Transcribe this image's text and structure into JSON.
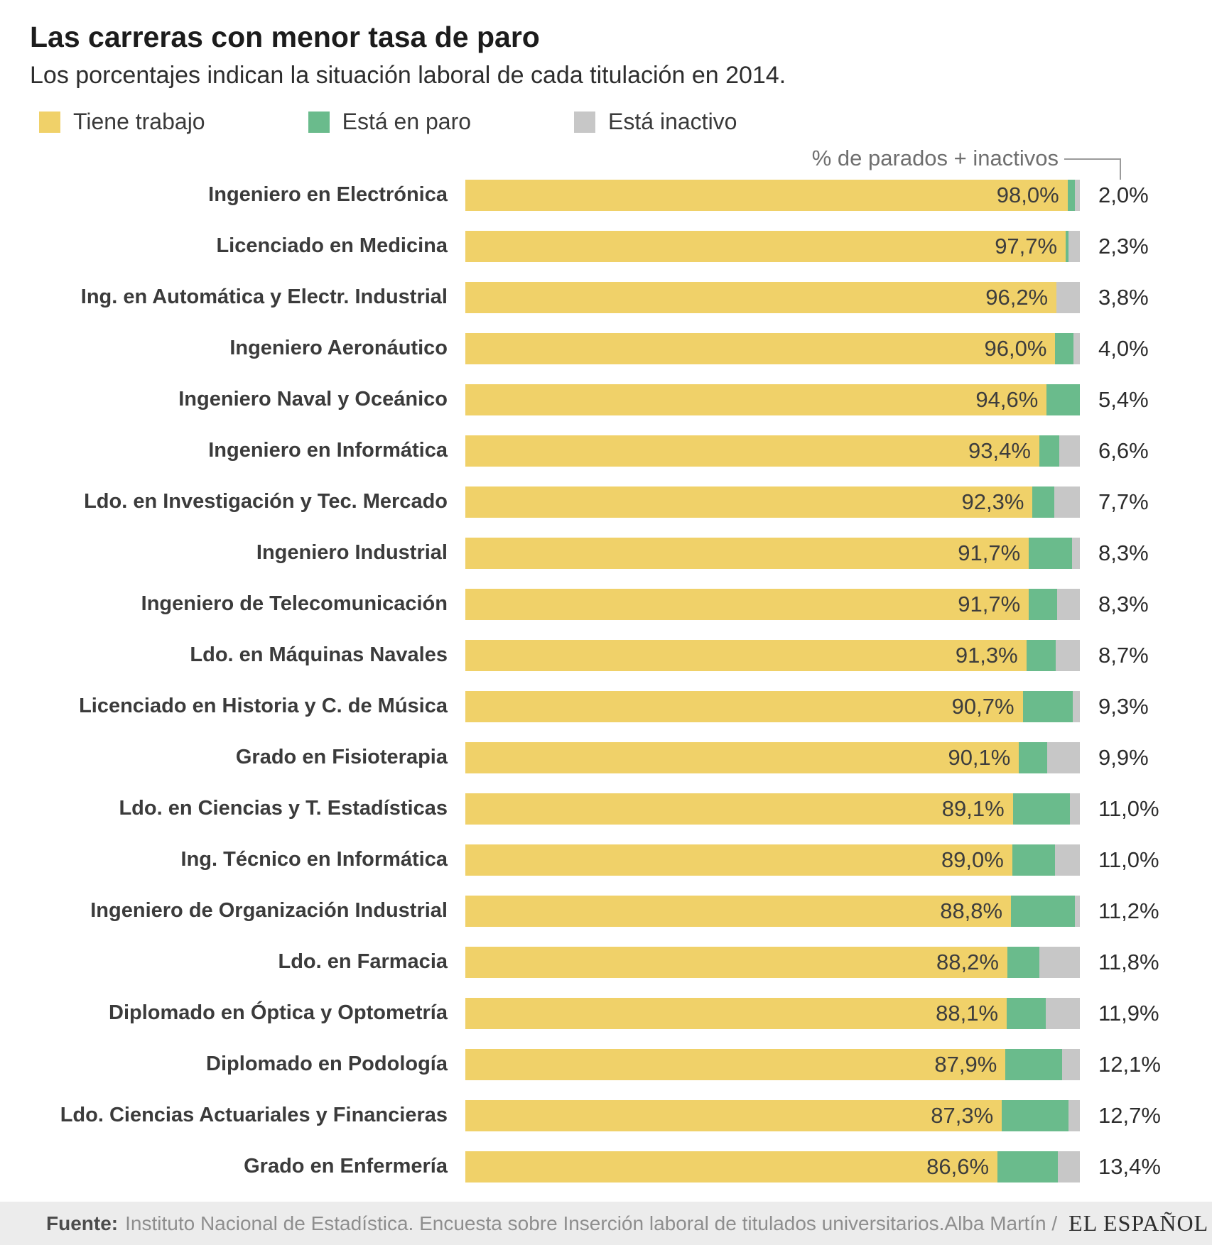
{
  "title": "Las carreras con menor tasa de paro",
  "subtitle": "Los porcentajes indican la situación laboral de cada titulación en 2014.",
  "annotation": "% de parados + inactivos",
  "legend": [
    {
      "label": "Tiene trabajo",
      "color": "#F0D169"
    },
    {
      "label": "Está en paro",
      "color": "#6ABB8C"
    },
    {
      "label": "Está inactivo",
      "color": "#C7C7C7"
    }
  ],
  "footer": {
    "source_label": "Fuente:",
    "source_text": "Instituto Nacional de Estadística. Encuesta sobre Inserción laboral de titulados universitarios.",
    "credit": "Alba Martín /",
    "brand": "EL ESPAÑOL"
  },
  "chart_data": {
    "type": "bar",
    "orientation": "horizontal",
    "stacked": true,
    "unit": "%",
    "xlim": [
      0,
      100
    ],
    "series_names": [
      "Tiene trabajo",
      "Está en paro",
      "Está inactivo"
    ],
    "categories": [
      "Ingeniero en Electrónica",
      "Licenciado en Medicina",
      "Ing. en Automática y Electr. Industrial",
      "Ingeniero Aeronáutico",
      "Ingeniero Naval y Oceánico",
      "Ingeniero en Informática",
      "Ldo. en Investigación y Tec. Mercado",
      "Ingeniero Industrial",
      "Ingeniero de Telecomunicación",
      "Ldo. en Máquinas Navales",
      "Licenciado en Historia y C. de Música",
      "Grado en Fisioterapia",
      "Ldo. en Ciencias y T. Estadísticas",
      "Ing. Técnico en Informática",
      "Ingeniero de Organización Industrial",
      "Ldo. en Farmacia",
      "Diplomado en Óptica y Optometría",
      "Diplomado en Podología",
      "Ldo. Ciencias Actuariales y Financieras",
      "Grado en Enfermería"
    ],
    "rows": [
      {
        "label": "Ingeniero en Electrónica",
        "trabajo": 98.0,
        "paro": 1.2,
        "inactivo": 0.8,
        "trabajo_label": "98,0%",
        "total_label": "2,0%"
      },
      {
        "label": "Licenciado en Medicina",
        "trabajo": 97.7,
        "paro": 0.5,
        "inactivo": 1.8,
        "trabajo_label": "97,7%",
        "total_label": "2,3%"
      },
      {
        "label": "Ing. en Automática y Electr. Industrial",
        "trabajo": 96.2,
        "paro": 0.0,
        "inactivo": 3.8,
        "trabajo_label": "96,2%",
        "total_label": "3,8%"
      },
      {
        "label": "Ingeniero Aeronáutico",
        "trabajo": 96.0,
        "paro": 3.0,
        "inactivo": 1.0,
        "trabajo_label": "96,0%",
        "total_label": "4,0%"
      },
      {
        "label": "Ingeniero Naval y Oceánico",
        "trabajo": 94.6,
        "paro": 5.4,
        "inactivo": 0.0,
        "trabajo_label": "94,6%",
        "total_label": "5,4%"
      },
      {
        "label": "Ingeniero en Informática",
        "trabajo": 93.4,
        "paro": 3.2,
        "inactivo": 3.4,
        "trabajo_label": "93,4%",
        "total_label": "6,6%"
      },
      {
        "label": "Ldo. en Investigación y Tec. Mercado",
        "trabajo": 92.3,
        "paro": 3.5,
        "inactivo": 4.2,
        "trabajo_label": "92,3%",
        "total_label": "7,7%"
      },
      {
        "label": "Ingeniero Industrial",
        "trabajo": 91.7,
        "paro": 7.0,
        "inactivo": 1.3,
        "trabajo_label": "91,7%",
        "total_label": "8,3%"
      },
      {
        "label": "Ingeniero de Telecomunicación",
        "trabajo": 91.7,
        "paro": 4.6,
        "inactivo": 3.7,
        "trabajo_label": "91,7%",
        "total_label": "8,3%"
      },
      {
        "label": "Ldo. en Máquinas Navales",
        "trabajo": 91.3,
        "paro": 4.8,
        "inactivo": 3.9,
        "trabajo_label": "91,3%",
        "total_label": "8,7%"
      },
      {
        "label": "Licenciado en Historia y C. de Música",
        "trabajo": 90.7,
        "paro": 8.1,
        "inactivo": 1.2,
        "trabajo_label": "90,7%",
        "total_label": "9,3%"
      },
      {
        "label": "Grado en Fisioterapia",
        "trabajo": 90.1,
        "paro": 4.6,
        "inactivo": 5.3,
        "trabajo_label": "90,1%",
        "total_label": "9,9%"
      },
      {
        "label": "Ldo. en Ciencias y T. Estadísticas",
        "trabajo": 89.1,
        "paro": 9.3,
        "inactivo": 1.6,
        "trabajo_label": "89,1%",
        "total_label": "11,0%"
      },
      {
        "label": "Ing. Técnico en Informática",
        "trabajo": 89.0,
        "paro": 7.0,
        "inactivo": 4.0,
        "trabajo_label": "89,0%",
        "total_label": "11,0%"
      },
      {
        "label": "Ingeniero de Organización Industrial",
        "trabajo": 88.8,
        "paro": 10.4,
        "inactivo": 0.8,
        "trabajo_label": "88,8%",
        "total_label": "11,2%"
      },
      {
        "label": "Ldo. en Farmacia",
        "trabajo": 88.2,
        "paro": 5.2,
        "inactivo": 6.6,
        "trabajo_label": "88,2%",
        "total_label": "11,8%"
      },
      {
        "label": "Diplomado en Óptica y Optometría",
        "trabajo": 88.1,
        "paro": 6.3,
        "inactivo": 5.6,
        "trabajo_label": "88,1%",
        "total_label": "11,9%"
      },
      {
        "label": "Diplomado en Podología",
        "trabajo": 87.9,
        "paro": 9.2,
        "inactivo": 2.9,
        "trabajo_label": "87,9%",
        "total_label": "12,1%"
      },
      {
        "label": "Ldo. Ciencias Actuariales y Financieras",
        "trabajo": 87.3,
        "paro": 10.9,
        "inactivo": 1.8,
        "trabajo_label": "87,3%",
        "total_label": "12,7%"
      },
      {
        "label": "Grado en Enfermería",
        "trabajo": 86.6,
        "paro": 9.8,
        "inactivo": 3.6,
        "trabajo_label": "86,6%",
        "total_label": "13,4%"
      }
    ]
  }
}
